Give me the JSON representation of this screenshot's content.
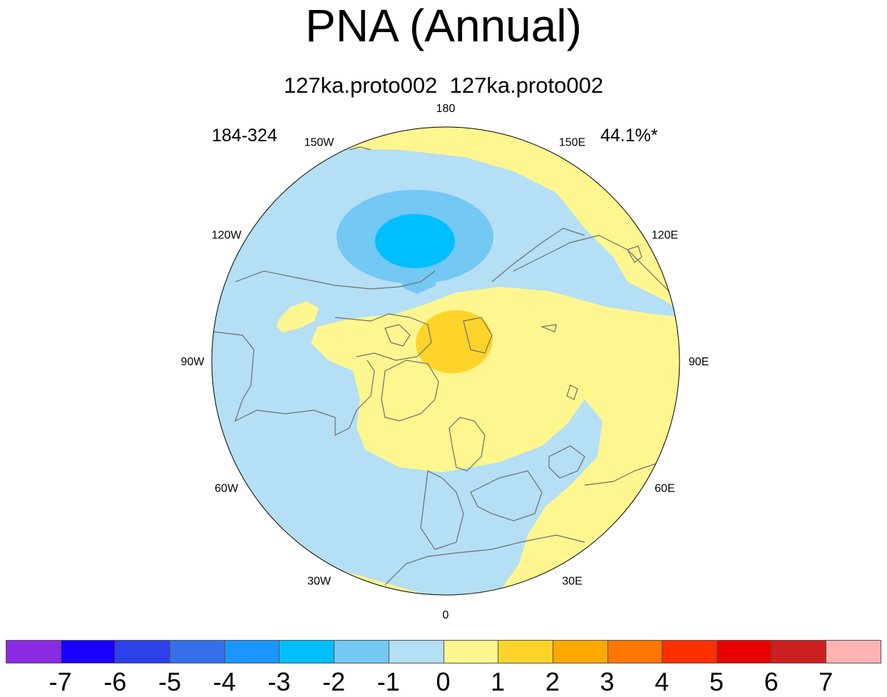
{
  "title": "PNA (Annual)",
  "subtitle": "127ka.proto002  127ka.proto002",
  "left_label": "184-324",
  "right_label": "44.1%*",
  "map": {
    "projection": "north-polar-stereographic",
    "longitude_labels": [
      {
        "text": "180",
        "lon": 180
      },
      {
        "text": "150E",
        "lon": 150
      },
      {
        "text": "120E",
        "lon": 120
      },
      {
        "text": "90E",
        "lon": 90
      },
      {
        "text": "60E",
        "lon": 60
      },
      {
        "text": "30E",
        "lon": 30
      },
      {
        "text": "0",
        "lon": 0
      },
      {
        "text": "30W",
        "lon": -30
      },
      {
        "text": "60W",
        "lon": -60
      },
      {
        "text": "90W",
        "lon": -90
      },
      {
        "text": "120W",
        "lon": -120
      },
      {
        "text": "150W",
        "lon": -150
      }
    ],
    "colors": {
      "positive_weak": "#fff68f",
      "positive_mid": "#ffd42a",
      "negative_weak": "#b4dff5",
      "negative_mid": "#73c8f4",
      "negative_strong": "#00bfff",
      "coastline": "#6e6e6e"
    }
  },
  "colorbar": {
    "colors": [
      "#8a2be2",
      "#1a00ff",
      "#2c41e8",
      "#3570ea",
      "#1c96ff",
      "#00bfff",
      "#73c8f4",
      "#b4dff5",
      "#fff68f",
      "#ffd42a",
      "#ffa800",
      "#ff7600",
      "#ff3000",
      "#e80000",
      "#cc2020",
      "#ffb3b3"
    ],
    "labels": [
      "-7",
      "-6",
      "-5",
      "-4",
      "-3",
      "-2",
      "-1",
      "0",
      "1",
      "2",
      "3",
      "4",
      "5",
      "6",
      "7"
    ]
  }
}
